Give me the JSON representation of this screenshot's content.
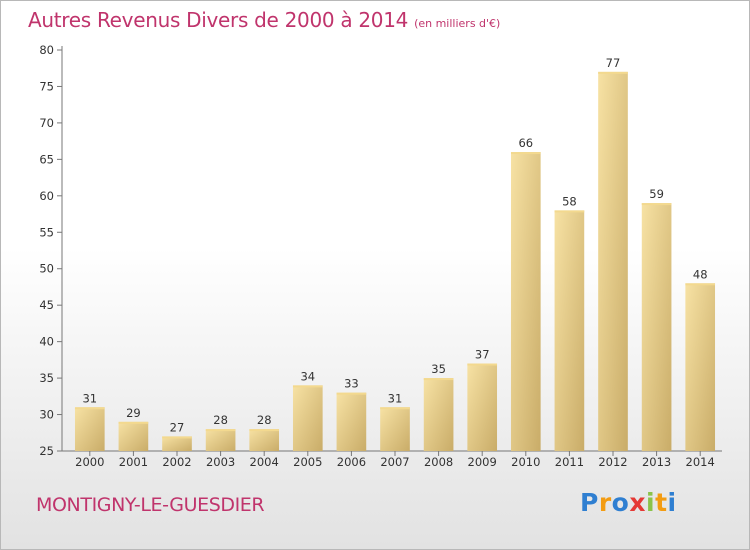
{
  "chart_data": {
    "type": "bar",
    "title": "Autres Revenus Divers de 2000 à 2014",
    "subtitle": "(en milliers d'€)",
    "categories": [
      "2000",
      "2001",
      "2002",
      "2003",
      "2004",
      "2005",
      "2006",
      "2007",
      "2008",
      "2009",
      "2010",
      "2011",
      "2012",
      "2013",
      "2014"
    ],
    "values": [
      31,
      29,
      27,
      28,
      28,
      34,
      33,
      31,
      35,
      37,
      66,
      58,
      77,
      59,
      48
    ],
    "ylim": [
      25,
      80
    ],
    "yticks": [
      25,
      30,
      35,
      40,
      45,
      50,
      55,
      60,
      65,
      70,
      75,
      80
    ],
    "xlabel": "",
    "ylabel": "",
    "grid": false,
    "data_labels": true,
    "bar_color": "#e8cc86",
    "text_color": "#c0346c"
  },
  "footer": {
    "commune": "MONTIGNY-LE-GUESDIER"
  },
  "logo": {
    "letters": [
      "P",
      "r",
      "o",
      "x",
      "i",
      "t",
      "i"
    ],
    "colors": [
      "#2f7fd1",
      "#f39c12",
      "#2f7fd1",
      "#e53935",
      "#8bc34a",
      "#f39c12",
      "#2f7fd1"
    ]
  }
}
